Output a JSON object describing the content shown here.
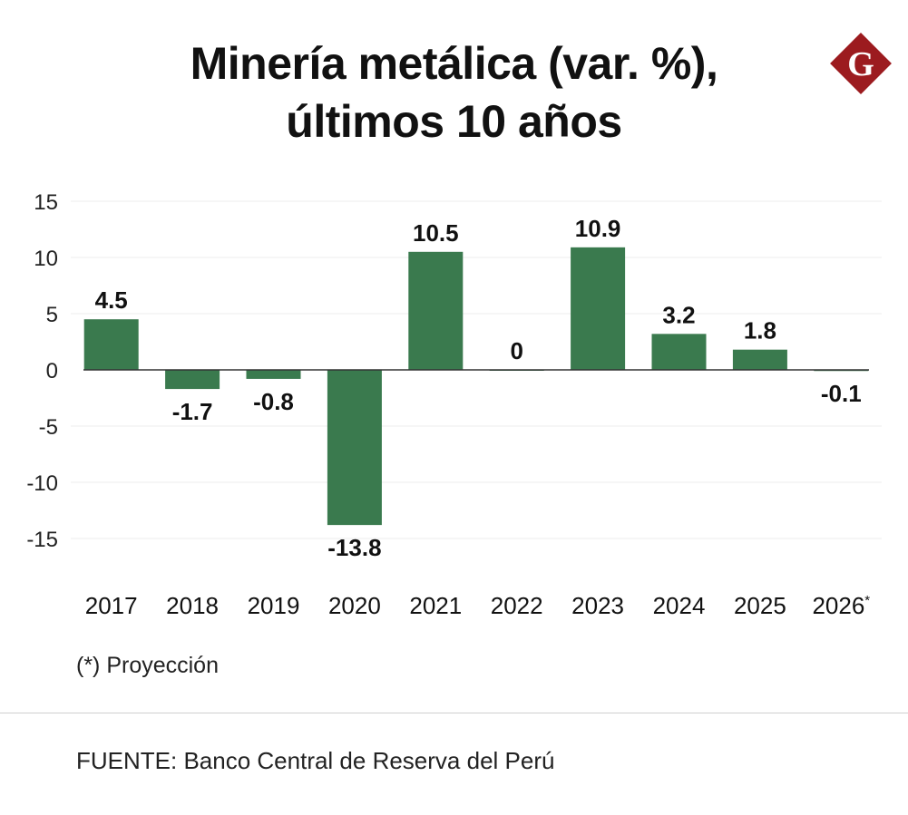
{
  "title_line1": "Minería metálica (var. %),",
  "title_line2": "últimos 10 años",
  "logo_letter": "G",
  "note": "(*) Proyección",
  "source": "FUENTE: Banco Central de Reserva del Perú",
  "colors": {
    "bar": "#3a7a4e",
    "logo": "#9c1b1f",
    "grid": "#ececec",
    "zero": "#333333"
  },
  "chart_data": {
    "type": "bar",
    "categories": [
      "2017",
      "2018",
      "2019",
      "2020",
      "2021",
      "2022",
      "2023",
      "2024",
      "2025",
      "2026*"
    ],
    "values": [
      4.5,
      -1.7,
      -0.8,
      -13.8,
      10.5,
      0,
      10.9,
      3.2,
      1.8,
      -0.1
    ],
    "data_labels": [
      "4.5",
      "-1.7",
      "-0.8",
      "-13.8",
      "10.5",
      "0",
      "10.9",
      "3.2",
      "1.8",
      "-0.1"
    ],
    "yticks": [
      15,
      10,
      5,
      0,
      -5,
      -10,
      -15
    ],
    "ytick_labels": [
      "15",
      "10",
      "5",
      "0",
      "-5",
      "-10",
      "-15"
    ],
    "ylim": [
      -15,
      15
    ],
    "grid": true,
    "legend": "none"
  }
}
